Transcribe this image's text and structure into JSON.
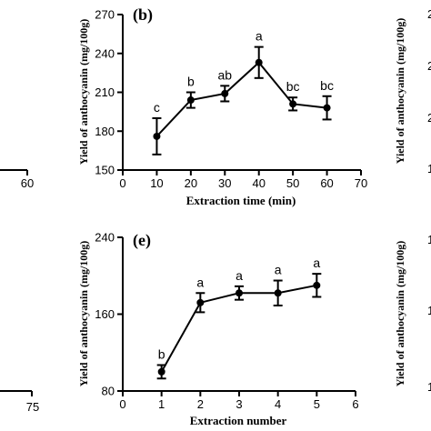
{
  "chart_data": [
    {
      "panel": "(b)",
      "type": "line",
      "xlabel": "Extraction time (min)",
      "ylabel": "Yield of anthocyanin (mg/100g)",
      "xlim": [
        0,
        70
      ],
      "ylim": [
        150,
        270
      ],
      "xticks": [
        "0",
        "10",
        "20",
        "30",
        "40",
        "50",
        "60",
        "70"
      ],
      "yticks": [
        "150",
        "180",
        "210",
        "240",
        "270"
      ],
      "x": [
        10,
        20,
        30,
        40,
        50,
        60
      ],
      "values": [
        176,
        204,
        209,
        233,
        201,
        198
      ],
      "errors": [
        14,
        6,
        6,
        12,
        5,
        9
      ],
      "letters": [
        "c",
        "b",
        "ab",
        "a",
        "bc",
        "bc"
      ]
    },
    {
      "panel": "(e)",
      "type": "line",
      "xlabel": "Extraction number",
      "ylabel": "Yield of anthocyanin (mg/100g)",
      "xlim": [
        0,
        6
      ],
      "ylim": [
        80,
        240
      ],
      "xticks": [
        "0",
        "1",
        "2",
        "3",
        "4",
        "5",
        "6"
      ],
      "yticks": [
        "80",
        "160",
        "240"
      ],
      "x": [
        1,
        2,
        3,
        4,
        5
      ],
      "values": [
        100,
        172,
        182,
        182,
        190
      ],
      "errors": [
        7,
        10,
        7,
        13,
        12
      ],
      "letters": [
        "b",
        "a",
        "a",
        "a",
        "a"
      ]
    }
  ],
  "neighbors": {
    "left_top_tick": "60",
    "left_bottom_tick": "75",
    "right_top_ylabel": "Yield of anthocyanin (mg/100g)",
    "right_top_ticks": [
      "2",
      "2",
      "2",
      "1"
    ],
    "right_bottom_ylabel": "Yield of anthocyanin (mg/100g)",
    "right_bottom_ticks": [
      "1",
      "1",
      "1"
    ]
  }
}
